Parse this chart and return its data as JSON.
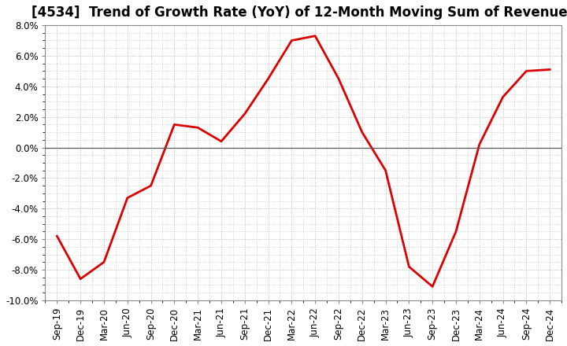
{
  "title": "[4534]  Trend of Growth Rate (YoY) of 12-Month Moving Sum of Revenues",
  "x_labels": [
    "Sep-19",
    "Dec-19",
    "Mar-20",
    "Jun-20",
    "Sep-20",
    "Dec-20",
    "Mar-21",
    "Jun-21",
    "Sep-21",
    "Dec-21",
    "Mar-22",
    "Jun-22",
    "Sep-22",
    "Dec-22",
    "Mar-23",
    "Jun-23",
    "Sep-23",
    "Dec-23",
    "Mar-24",
    "Jun-24",
    "Sep-24",
    "Dec-24"
  ],
  "y_values": [
    -5.8,
    -8.6,
    -7.5,
    -3.3,
    -2.5,
    1.5,
    1.3,
    0.4,
    2.2,
    4.5,
    7.0,
    7.3,
    4.5,
    1.0,
    -1.5,
    -7.8,
    -9.1,
    -5.5,
    0.2,
    3.3,
    5.0,
    5.1
  ],
  "line_color": "#dd0000",
  "line_width": 2.0,
  "ylim": [
    -10.0,
    8.0
  ],
  "yticks": [
    -10.0,
    -8.0,
    -6.0,
    -4.0,
    -2.0,
    0.0,
    2.0,
    4.0,
    6.0,
    8.0
  ],
  "background_color": "#ffffff",
  "grid_color": "#bbbbbb",
  "title_fontsize": 12,
  "axis_fontsize": 8.5
}
